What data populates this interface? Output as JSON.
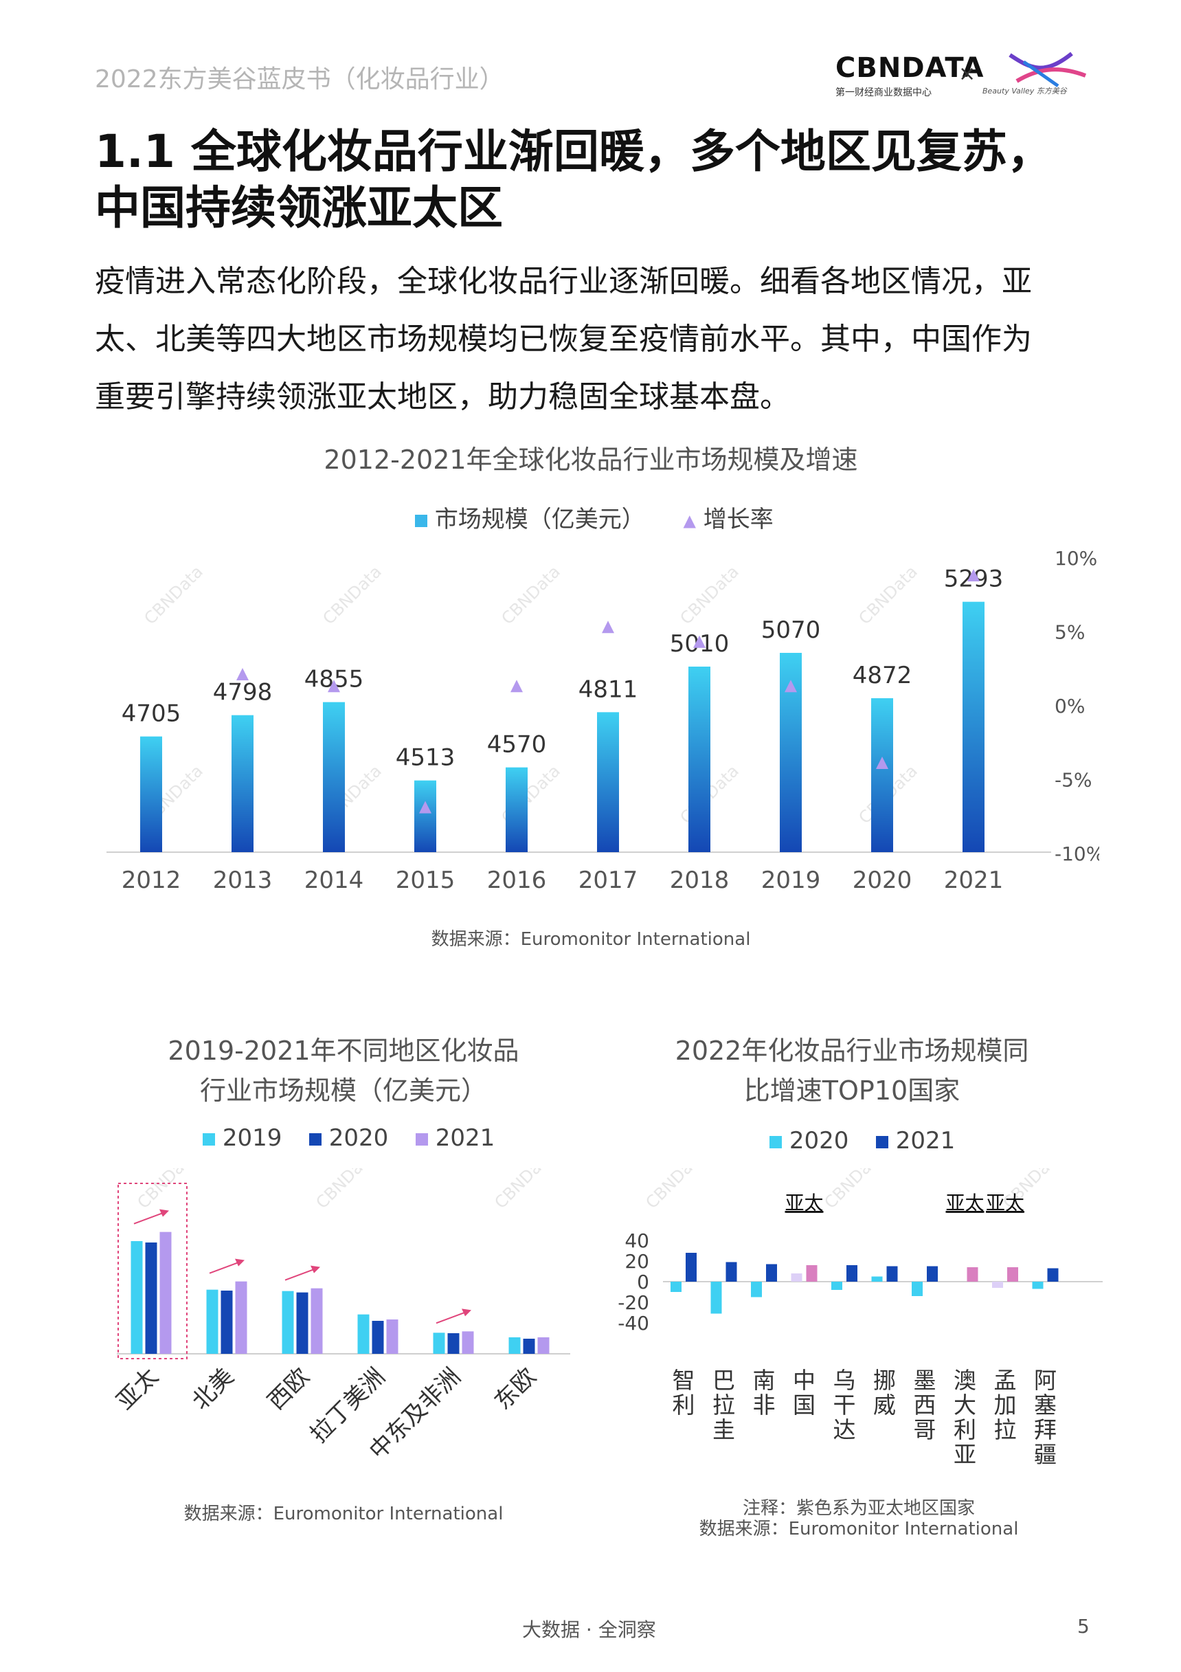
{
  "header": {
    "report_title": "2022东方美谷蓝皮书（化妆品行业）",
    "logo_cbn": "CBNDATA",
    "logo_cbn_sub": "第一财经商业数据中心",
    "logo_x": "×",
    "logo_partner_text": "Beauty Valley 东方美谷"
  },
  "section": {
    "title_line1": "1.1  全球化妆品行业渐回暖，多个地区见复苏，",
    "title_line2": "中国持续领涨亚太区",
    "para_line1": "疫情进入常态化阶段，全球化妆品行业逐渐回暖。细看各地区情况，亚",
    "para_line2": "太、北美等四大地区市场规模均已恢复至疫情前水平。其中，中国作为",
    "para_line3": "重要引擎持续领涨亚太地区，助力稳固全球基本盘。"
  },
  "watermark": "CBNData",
  "colors": {
    "bar_light": "#3fd0f2",
    "bar_dark": "#1447b4",
    "purple": "#b499ee",
    "pink": "#d97fbf",
    "arrow": "#e0457b"
  },
  "chart_data": [
    {
      "type": "bar",
      "title": "2012-2021年全球化妆品行业市场规模及增速",
      "categories": [
        "2012",
        "2013",
        "2014",
        "2015",
        "2016",
        "2017",
        "2018",
        "2019",
        "2020",
        "2021"
      ],
      "series": [
        {
          "name": "市场规模（亿美元）",
          "values": [
            4705,
            4798,
            4855,
            4513,
            4570,
            4811,
            5010,
            5070,
            4872,
            5293
          ]
        },
        {
          "name": "增长率",
          "type": "scatter",
          "axis": "right",
          "values": [
            null,
            0.02,
            0.012,
            -0.07,
            0.012,
            0.052,
            0.042,
            0.012,
            -0.04,
            0.087
          ]
        }
      ],
      "y2_ticks": [
        "10%",
        "5%",
        "0%",
        "-5%",
        "-10%"
      ],
      "y2lim": [
        -0.1,
        0.1
      ],
      "source": "数据来源：Euromonitor International"
    },
    {
      "type": "bar",
      "title_line1": "2019-2021年不同地区化妆品",
      "title_line2": "行业市场规模（亿美元）",
      "categories": [
        "亚太",
        "北美",
        "西欧",
        "拉丁美洲",
        "中东及非洲",
        "东欧"
      ],
      "series": [
        {
          "name": "2019",
          "values": [
            1230,
            700,
            685,
            430,
            230,
            180
          ]
        },
        {
          "name": "2020",
          "values": [
            1215,
            690,
            670,
            360,
            225,
            165
          ]
        },
        {
          "name": "2021",
          "values": [
            1330,
            790,
            715,
            375,
            245,
            180
          ]
        }
      ],
      "trend_arrows": [
        true,
        true,
        true,
        false,
        true,
        false
      ],
      "source": "数据来源：Euromonitor International"
    },
    {
      "type": "bar",
      "title_line1": "2022年化妆品行业市场规模同",
      "title_line2": "比增速TOP10国家",
      "categories": [
        "智利",
        "巴拉圭",
        "南非",
        "中国",
        "乌干达",
        "挪威",
        "墨西哥",
        "澳大利亚",
        "孟加拉",
        "阿塞拜疆"
      ],
      "series": [
        {
          "name": "2020",
          "values": [
            -10,
            -31,
            -15,
            8,
            -8,
            5,
            -14,
            null,
            -6,
            -7
          ]
        },
        {
          "name": "2021",
          "values": [
            28,
            19,
            17,
            16,
            16,
            15,
            15,
            14,
            14,
            13
          ]
        }
      ],
      "asia_pacific": [
        false,
        false,
        false,
        true,
        false,
        false,
        false,
        true,
        true,
        false
      ],
      "asia_label": "亚太",
      "y_ticks": [
        "40",
        "20",
        "0",
        "-20",
        "-40"
      ],
      "ylim": [
        -40,
        40
      ],
      "note": "注释：紫色系为亚太地区国家",
      "source": "数据来源：Euromonitor International"
    }
  ],
  "footer": {
    "slogan": "大数据 · 全洞察",
    "page": "5"
  }
}
